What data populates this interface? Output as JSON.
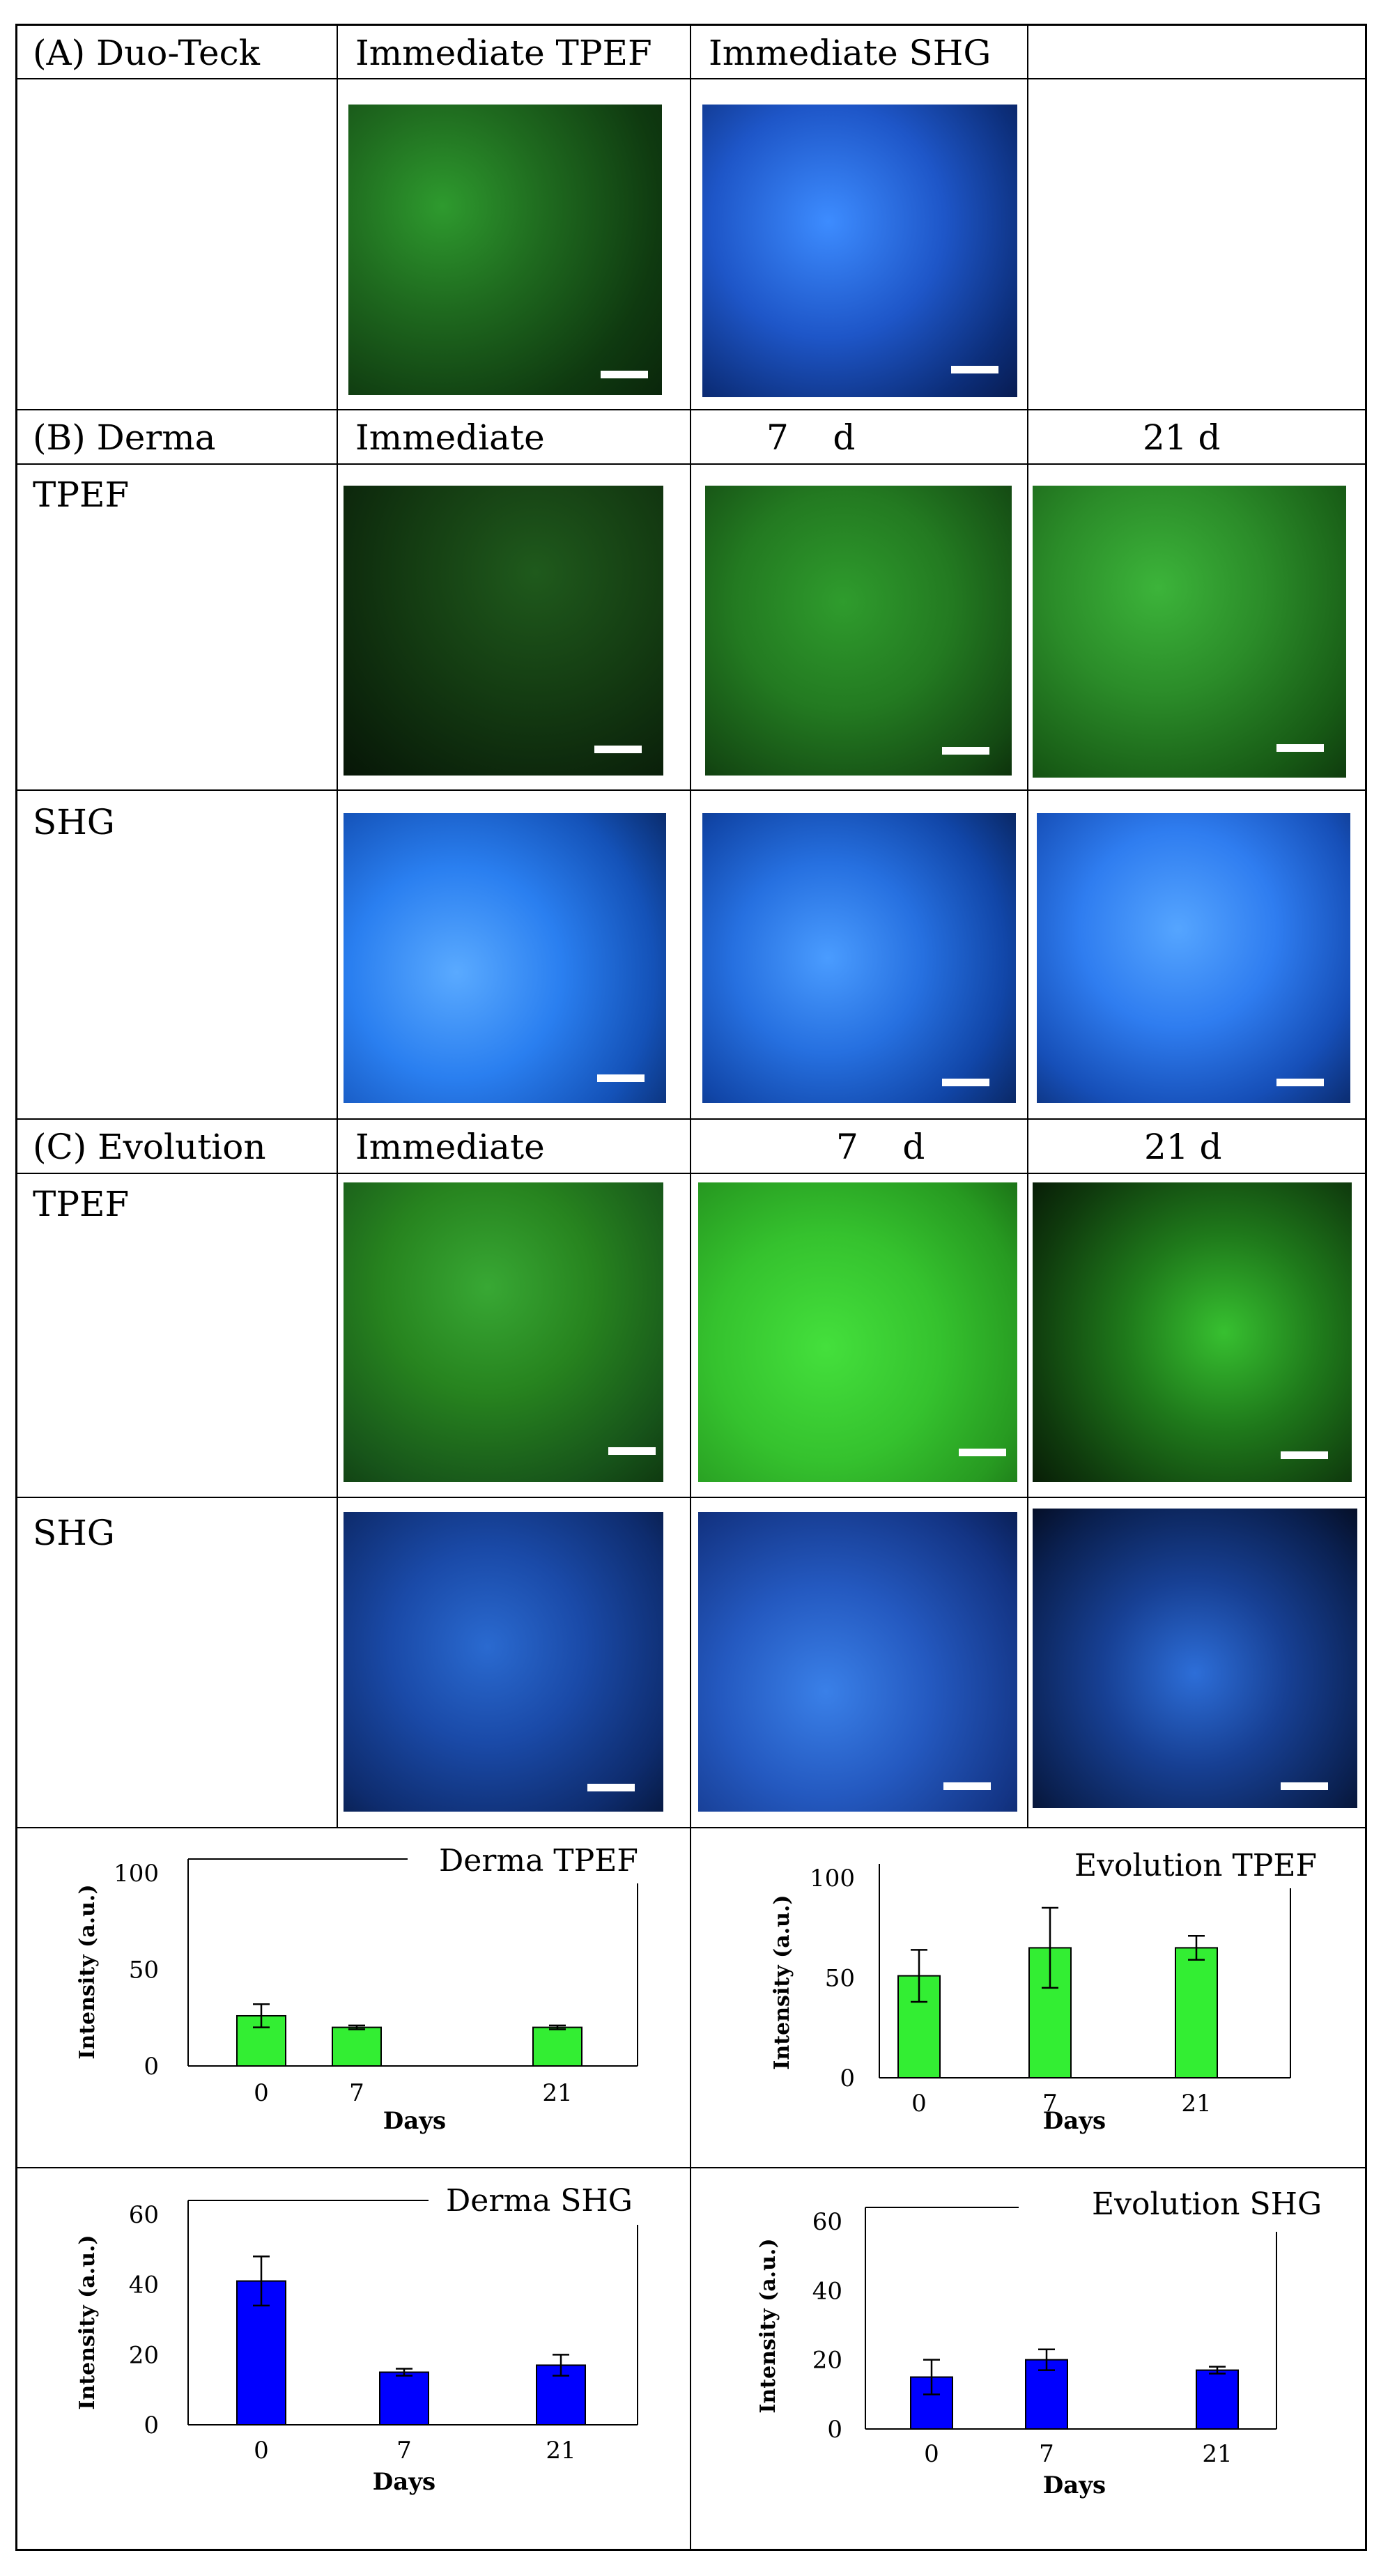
{
  "panels": {
    "A": {
      "title": "(A) Duo-Teck",
      "col1": "Immediate TPEF",
      "col2": "Immediate SHG"
    },
    "B": {
      "title": "(B) Derma",
      "col1": "Immediate",
      "col2": "7    d",
      "col3": "21 d",
      "row1": "TPEF",
      "row2": "SHG"
    },
    "C": {
      "title": "(C) Evolution",
      "col1": "Immediate",
      "col2": "7    d",
      "col3": "21 d",
      "row1": "TPEF",
      "row2": "SHG"
    }
  },
  "colors": {
    "tpef_bar": "#33ee33",
    "shg_bar": "#0000ff",
    "tpef_image": "#1f8f1f",
    "shg_image": "#1f6fff"
  },
  "chart_data": [
    {
      "type": "bar",
      "title": "Derma TPEF",
      "categories": [
        "0",
        "7",
        "21"
      ],
      "values": [
        26,
        20,
        20
      ],
      "errors": [
        6,
        1,
        1
      ],
      "ylim": [
        0,
        100
      ],
      "yticks": [
        "100",
        "50",
        "0"
      ],
      "xlabel": "Days",
      "ylabel": "Intensity (a.u.)",
      "bar_color": "#33ee33"
    },
    {
      "type": "bar",
      "title": "Evolution TPEF",
      "categories": [
        "0",
        "7",
        "21"
      ],
      "values": [
        51,
        65,
        65
      ],
      "errors": [
        13,
        20,
        6
      ],
      "ylim": [
        0,
        100
      ],
      "yticks": [
        "100",
        "50",
        "0"
      ],
      "xlabel": "Days",
      "ylabel": "Intensity (a.u.)",
      "bar_color": "#33ee33"
    },
    {
      "type": "bar",
      "title": "Derma SHG",
      "categories": [
        "0",
        "7",
        "21"
      ],
      "values": [
        41,
        15,
        17
      ],
      "errors": [
        7,
        1,
        3
      ],
      "ylim": [
        0,
        60
      ],
      "yticks": [
        "60",
        "40",
        "20",
        "0"
      ],
      "xlabel": "Days",
      "ylabel": "Intensity (a.u.)",
      "bar_color": "#0000ff"
    },
    {
      "type": "bar",
      "title": "Evolution SHG",
      "categories": [
        "0",
        "7",
        "21"
      ],
      "values": [
        15,
        20,
        17
      ],
      "errors": [
        5,
        3,
        1
      ],
      "ylim": [
        0,
        60
      ],
      "yticks": [
        "60",
        "40",
        "20",
        "0"
      ],
      "xlabel": "Days",
      "ylabel": "Intensity (a.u.)",
      "bar_color": "#0000ff"
    }
  ]
}
